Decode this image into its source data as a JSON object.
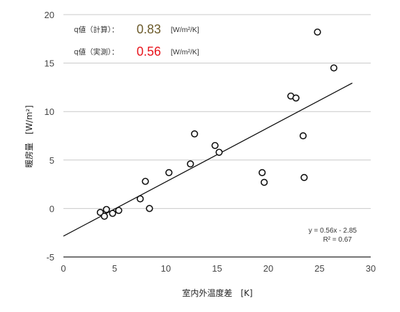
{
  "chart_data": {
    "type": "scatter",
    "xlabel": "室内外温度差　[K]",
    "ylabel": "暖房量　[W/m²]",
    "xlim": [
      0,
      30
    ],
    "ylim": [
      -5,
      20
    ],
    "x_ticks": [
      "0",
      "5",
      "10",
      "15",
      "20",
      "25",
      "30"
    ],
    "y_ticks": [
      "-5",
      "0",
      "5",
      "10",
      "15",
      "20"
    ],
    "grid": "horizontal",
    "points": [
      {
        "x": 3.6,
        "y": -0.4
      },
      {
        "x": 4.0,
        "y": -0.8
      },
      {
        "x": 4.2,
        "y": -0.1
      },
      {
        "x": 4.8,
        "y": -0.5
      },
      {
        "x": 5.4,
        "y": -0.2
      },
      {
        "x": 7.5,
        "y": 1.0
      },
      {
        "x": 8.0,
        "y": 2.8
      },
      {
        "x": 8.4,
        "y": 0.0
      },
      {
        "x": 10.3,
        "y": 3.7
      },
      {
        "x": 12.4,
        "y": 4.6
      },
      {
        "x": 12.8,
        "y": 7.7
      },
      {
        "x": 14.8,
        "y": 6.5
      },
      {
        "x": 15.2,
        "y": 5.8
      },
      {
        "x": 19.4,
        "y": 3.7
      },
      {
        "x": 19.6,
        "y": 2.7
      },
      {
        "x": 22.2,
        "y": 11.6
      },
      {
        "x": 22.7,
        "y": 11.4
      },
      {
        "x": 23.4,
        "y": 7.5
      },
      {
        "x": 23.5,
        "y": 3.2
      },
      {
        "x": 24.8,
        "y": 18.2
      },
      {
        "x": 26.4,
        "y": 14.5
      }
    ],
    "trendline": {
      "slope": 0.56,
      "intercept": -2.85,
      "x_range": [
        0,
        28.2
      ]
    },
    "equation": "y = 0.56x - 2.85",
    "r_squared": "R² = 0.67",
    "annotations": [
      {
        "label": "q値（計算）：",
        "value": "0.83",
        "unit": "[W/m²/K]",
        "value_color": "#6b5a2a"
      },
      {
        "label": "q値（実測）：",
        "value": "0.56",
        "unit": "[W/m²/K]",
        "value_color": "#e8141c"
      }
    ],
    "colors": {
      "grid": "#c8c8c8",
      "axis": "#222222",
      "marker_stroke": "#111111",
      "marker_fill": "#ffffff",
      "line": "#111111"
    }
  }
}
